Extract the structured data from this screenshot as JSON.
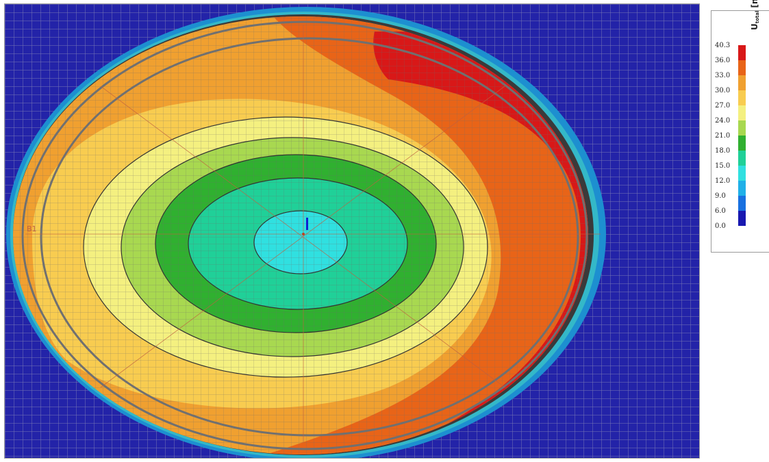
{
  "legend": {
    "title_main": "U",
    "title_sub": "total",
    "title_unit": "[mm]",
    "ticks": [
      "40.3",
      "36.0",
      "33.0",
      "30.0",
      "27.0",
      "24.0",
      "21.0",
      "18.0",
      "15.0",
      "12.0",
      "9.0",
      "6.0",
      "0.0"
    ],
    "colors": [
      "#d81818",
      "#e86418",
      "#f0a030",
      "#f8cc50",
      "#f4f080",
      "#a8d850",
      "#30b030",
      "#20d098",
      "#30e0e0",
      "#20b0e8",
      "#1870e0",
      "#1818b0"
    ]
  },
  "viewport": {
    "background_color": "#2323a8",
    "mesh_color": "#8c8cb8",
    "axis_label_left": "B1"
  }
}
